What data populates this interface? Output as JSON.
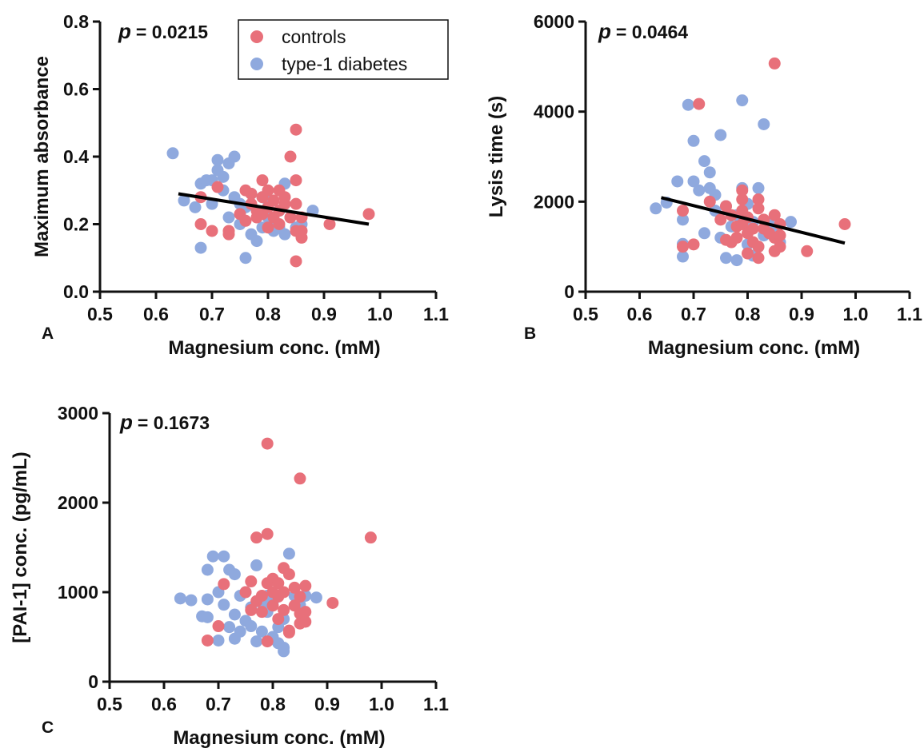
{
  "colors": {
    "controls": "#e8707a",
    "diabetes": "#8fa9de",
    "fit": "#000000"
  },
  "legend": [
    {
      "key": "controls",
      "label": "controls"
    },
    {
      "key": "diabetes",
      "label": "type-1 diabetes"
    }
  ],
  "chart_data": [
    {
      "type": "scatter",
      "panel": "A",
      "p_symbol": "p",
      "p_text": "= 0.0215",
      "xlabel": "Magnesium conc. (mM)",
      "ylabel": "Maximum absorbance",
      "xlim": [
        0.5,
        1.1
      ],
      "ylim": [
        0.0,
        0.8
      ],
      "xticks": [
        "0.5",
        "0.6",
        "0.7",
        "0.8",
        "0.9",
        "1.0",
        "1.1"
      ],
      "yticks": [
        "0.0",
        "0.2",
        "0.4",
        "0.6",
        "0.8"
      ],
      "has_legend": true,
      "fit_line": [
        [
          0.64,
          0.29
        ],
        [
          0.98,
          0.2
        ]
      ],
      "series": [
        {
          "key": "diabetes",
          "name": "type-1 diabetes",
          "points": [
            [
              0.63,
              0.41
            ],
            [
              0.65,
              0.27
            ],
            [
              0.67,
              0.25
            ],
            [
              0.68,
              0.32
            ],
            [
              0.68,
              0.13
            ],
            [
              0.69,
              0.33
            ],
            [
              0.7,
              0.26
            ],
            [
              0.7,
              0.33
            ],
            [
              0.71,
              0.36
            ],
            [
              0.71,
              0.39
            ],
            [
              0.72,
              0.34
            ],
            [
              0.72,
              0.3
            ],
            [
              0.73,
              0.38
            ],
            [
              0.73,
              0.22
            ],
            [
              0.74,
              0.4
            ],
            [
              0.74,
              0.28
            ],
            [
              0.75,
              0.26
            ],
            [
              0.75,
              0.2
            ],
            [
              0.76,
              0.1
            ],
            [
              0.76,
              0.25
            ],
            [
              0.77,
              0.29
            ],
            [
              0.77,
              0.17
            ],
            [
              0.78,
              0.24
            ],
            [
              0.78,
              0.15
            ],
            [
              0.79,
              0.28
            ],
            [
              0.79,
              0.19
            ],
            [
              0.8,
              0.22
            ],
            [
              0.8,
              0.27
            ],
            [
              0.81,
              0.18
            ],
            [
              0.81,
              0.21
            ],
            [
              0.82,
              0.24
            ],
            [
              0.82,
              0.19
            ],
            [
              0.83,
              0.32
            ],
            [
              0.83,
              0.17
            ],
            [
              0.84,
              0.22
            ],
            [
              0.85,
              0.19
            ],
            [
              0.86,
              0.2
            ],
            [
              0.88,
              0.24
            ]
          ]
        },
        {
          "key": "controls",
          "name": "controls",
          "points": [
            [
              0.68,
              0.2
            ],
            [
              0.68,
              0.28
            ],
            [
              0.7,
              0.18
            ],
            [
              0.71,
              0.31
            ],
            [
              0.73,
              0.17
            ],
            [
              0.73,
              0.18
            ],
            [
              0.75,
              0.23
            ],
            [
              0.76,
              0.3
            ],
            [
              0.76,
              0.21
            ],
            [
              0.77,
              0.26
            ],
            [
              0.77,
              0.29
            ],
            [
              0.78,
              0.22
            ],
            [
              0.78,
              0.24
            ],
            [
              0.79,
              0.33
            ],
            [
              0.79,
              0.28
            ],
            [
              0.79,
              0.23
            ],
            [
              0.8,
              0.25
            ],
            [
              0.8,
              0.3
            ],
            [
              0.8,
              0.19
            ],
            [
              0.81,
              0.27
            ],
            [
              0.81,
              0.22
            ],
            [
              0.82,
              0.3
            ],
            [
              0.82,
              0.24
            ],
            [
              0.82,
              0.2
            ],
            [
              0.83,
              0.26
            ],
            [
              0.83,
              0.28
            ],
            [
              0.84,
              0.4
            ],
            [
              0.84,
              0.22
            ],
            [
              0.85,
              0.48
            ],
            [
              0.85,
              0.33
            ],
            [
              0.85,
              0.26
            ],
            [
              0.85,
              0.18
            ],
            [
              0.85,
              0.09
            ],
            [
              0.86,
              0.22
            ],
            [
              0.86,
              0.18
            ],
            [
              0.86,
              0.16
            ],
            [
              0.91,
              0.2
            ],
            [
              0.98,
              0.23
            ]
          ]
        }
      ]
    },
    {
      "type": "scatter",
      "panel": "B",
      "p_symbol": "p",
      "p_text": "= 0.0464",
      "xlabel": "Magnesium conc. (mM)",
      "ylabel": "Lysis time (s)",
      "xlim": [
        0.5,
        1.1
      ],
      "ylim": [
        0,
        6000
      ],
      "xticks": [
        "0.5",
        "0.6",
        "0.7",
        "0.8",
        "0.9",
        "1.0",
        "1.1"
      ],
      "yticks": [
        "0",
        "2000",
        "4000",
        "6000"
      ],
      "has_legend": false,
      "fit_line": [
        [
          0.64,
          2090
        ],
        [
          0.98,
          1080
        ]
      ],
      "series": [
        {
          "key": "diabetes",
          "name": "type-1 diabetes",
          "points": [
            [
              0.63,
              1850
            ],
            [
              0.65,
              1980
            ],
            [
              0.67,
              2450
            ],
            [
              0.68,
              1060
            ],
            [
              0.68,
              780
            ],
            [
              0.68,
              1600
            ],
            [
              0.69,
              4150
            ],
            [
              0.7,
              3350
            ],
            [
              0.7,
              2450
            ],
            [
              0.71,
              2250
            ],
            [
              0.72,
              2900
            ],
            [
              0.72,
              1300
            ],
            [
              0.73,
              2650
            ],
            [
              0.73,
              2300
            ],
            [
              0.74,
              2150
            ],
            [
              0.74,
              1800
            ],
            [
              0.75,
              1200
            ],
            [
              0.75,
              3480
            ],
            [
              0.76,
              750
            ],
            [
              0.76,
              1900
            ],
            [
              0.77,
              1450
            ],
            [
              0.78,
              1700
            ],
            [
              0.78,
              700
            ],
            [
              0.79,
              4250
            ],
            [
              0.79,
              2300
            ],
            [
              0.79,
              1650
            ],
            [
              0.8,
              1050
            ],
            [
              0.8,
              1950
            ],
            [
              0.81,
              1550
            ],
            [
              0.81,
              800
            ],
            [
              0.82,
              2300
            ],
            [
              0.82,
              1000
            ],
            [
              0.83,
              3720
            ],
            [
              0.83,
              1250
            ],
            [
              0.84,
              1500
            ],
            [
              0.85,
              1300
            ],
            [
              0.86,
              1100
            ],
            [
              0.88,
              1550
            ]
          ]
        },
        {
          "key": "controls",
          "name": "controls",
          "points": [
            [
              0.68,
              1800
            ],
            [
              0.68,
              1000
            ],
            [
              0.7,
              1050
            ],
            [
              0.71,
              4170
            ],
            [
              0.73,
              2000
            ],
            [
              0.75,
              1600
            ],
            [
              0.76,
              1150
            ],
            [
              0.76,
              1900
            ],
            [
              0.77,
              1700
            ],
            [
              0.77,
              1100
            ],
            [
              0.78,
              1200
            ],
            [
              0.78,
              1450
            ],
            [
              0.79,
              2250
            ],
            [
              0.79,
              2050
            ],
            [
              0.79,
              1800
            ],
            [
              0.79,
              1500
            ],
            [
              0.8,
              1650
            ],
            [
              0.8,
              1300
            ],
            [
              0.8,
              850
            ],
            [
              0.81,
              1400
            ],
            [
              0.81,
              1100
            ],
            [
              0.82,
              2050
            ],
            [
              0.82,
              1850
            ],
            [
              0.82,
              1000
            ],
            [
              0.82,
              750
            ],
            [
              0.83,
              1600
            ],
            [
              0.83,
              1400
            ],
            [
              0.84,
              1300
            ],
            [
              0.85,
              5070
            ],
            [
              0.85,
              1700
            ],
            [
              0.85,
              1200
            ],
            [
              0.85,
              900
            ],
            [
              0.86,
              1500
            ],
            [
              0.86,
              1250
            ],
            [
              0.86,
              1000
            ],
            [
              0.91,
              900
            ],
            [
              0.98,
              1500
            ]
          ]
        }
      ]
    },
    {
      "type": "scatter",
      "panel": "C",
      "p_symbol": "p",
      "p_text": "= 0.1673",
      "xlabel": "Magnesium conc. (mM)",
      "ylabel": "[PAI-1] conc. (pg/mL)",
      "xlim": [
        0.5,
        1.1
      ],
      "ylim": [
        0,
        3000
      ],
      "xticks": [
        "0.5",
        "0.6",
        "0.7",
        "0.8",
        "0.9",
        "1.0",
        "1.1"
      ],
      "yticks": [
        "0",
        "1000",
        "2000",
        "3000"
      ],
      "has_legend": false,
      "fit_line": null,
      "series": [
        {
          "key": "diabetes",
          "name": "type-1 diabetes",
          "points": [
            [
              0.63,
              930
            ],
            [
              0.65,
              910
            ],
            [
              0.67,
              730
            ],
            [
              0.68,
              920
            ],
            [
              0.68,
              1250
            ],
            [
              0.68,
              720
            ],
            [
              0.69,
              1400
            ],
            [
              0.7,
              1000
            ],
            [
              0.7,
              460
            ],
            [
              0.71,
              1400
            ],
            [
              0.71,
              860
            ],
            [
              0.72,
              610
            ],
            [
              0.72,
              1250
            ],
            [
              0.73,
              1200
            ],
            [
              0.73,
              480
            ],
            [
              0.73,
              750
            ],
            [
              0.74,
              960
            ],
            [
              0.74,
              560
            ],
            [
              0.75,
              680
            ],
            [
              0.75,
              1000
            ],
            [
              0.76,
              620
            ],
            [
              0.76,
              830
            ],
            [
              0.77,
              1300
            ],
            [
              0.77,
              450
            ],
            [
              0.78,
              880
            ],
            [
              0.78,
              560
            ],
            [
              0.79,
              780
            ],
            [
              0.79,
              960
            ],
            [
              0.8,
              500
            ],
            [
              0.8,
              890
            ],
            [
              0.81,
              610
            ],
            [
              0.81,
              430
            ],
            [
              0.82,
              700
            ],
            [
              0.82,
              340
            ],
            [
              0.82,
              380
            ],
            [
              0.83,
              1430
            ],
            [
              0.84,
              960
            ],
            [
              0.85,
              860
            ],
            [
              0.86,
              960
            ],
            [
              0.88,
              940
            ]
          ]
        },
        {
          "key": "controls",
          "name": "controls",
          "points": [
            [
              0.68,
              460
            ],
            [
              0.7,
              620
            ],
            [
              0.71,
              1090
            ],
            [
              0.75,
              1000
            ],
            [
              0.76,
              800
            ],
            [
              0.76,
              1120
            ],
            [
              0.77,
              1610
            ],
            [
              0.77,
              900
            ],
            [
              0.78,
              960
            ],
            [
              0.78,
              780
            ],
            [
              0.79,
              1650
            ],
            [
              0.79,
              2660
            ],
            [
              0.79,
              1100
            ],
            [
              0.79,
              450
            ],
            [
              0.8,
              1000
            ],
            [
              0.8,
              1150
            ],
            [
              0.8,
              850
            ],
            [
              0.81,
              1100
            ],
            [
              0.81,
              950
            ],
            [
              0.81,
              700
            ],
            [
              0.82,
              1270
            ],
            [
              0.82,
              1000
            ],
            [
              0.82,
              800
            ],
            [
              0.83,
              1200
            ],
            [
              0.83,
              570
            ],
            [
              0.83,
              550
            ],
            [
              0.84,
              1050
            ],
            [
              0.84,
              850
            ],
            [
              0.85,
              2270
            ],
            [
              0.85,
              950
            ],
            [
              0.85,
              760
            ],
            [
              0.85,
              650
            ],
            [
              0.86,
              1070
            ],
            [
              0.86,
              780
            ],
            [
              0.86,
              670
            ],
            [
              0.91,
              880
            ],
            [
              0.98,
              1610
            ]
          ]
        }
      ]
    }
  ]
}
